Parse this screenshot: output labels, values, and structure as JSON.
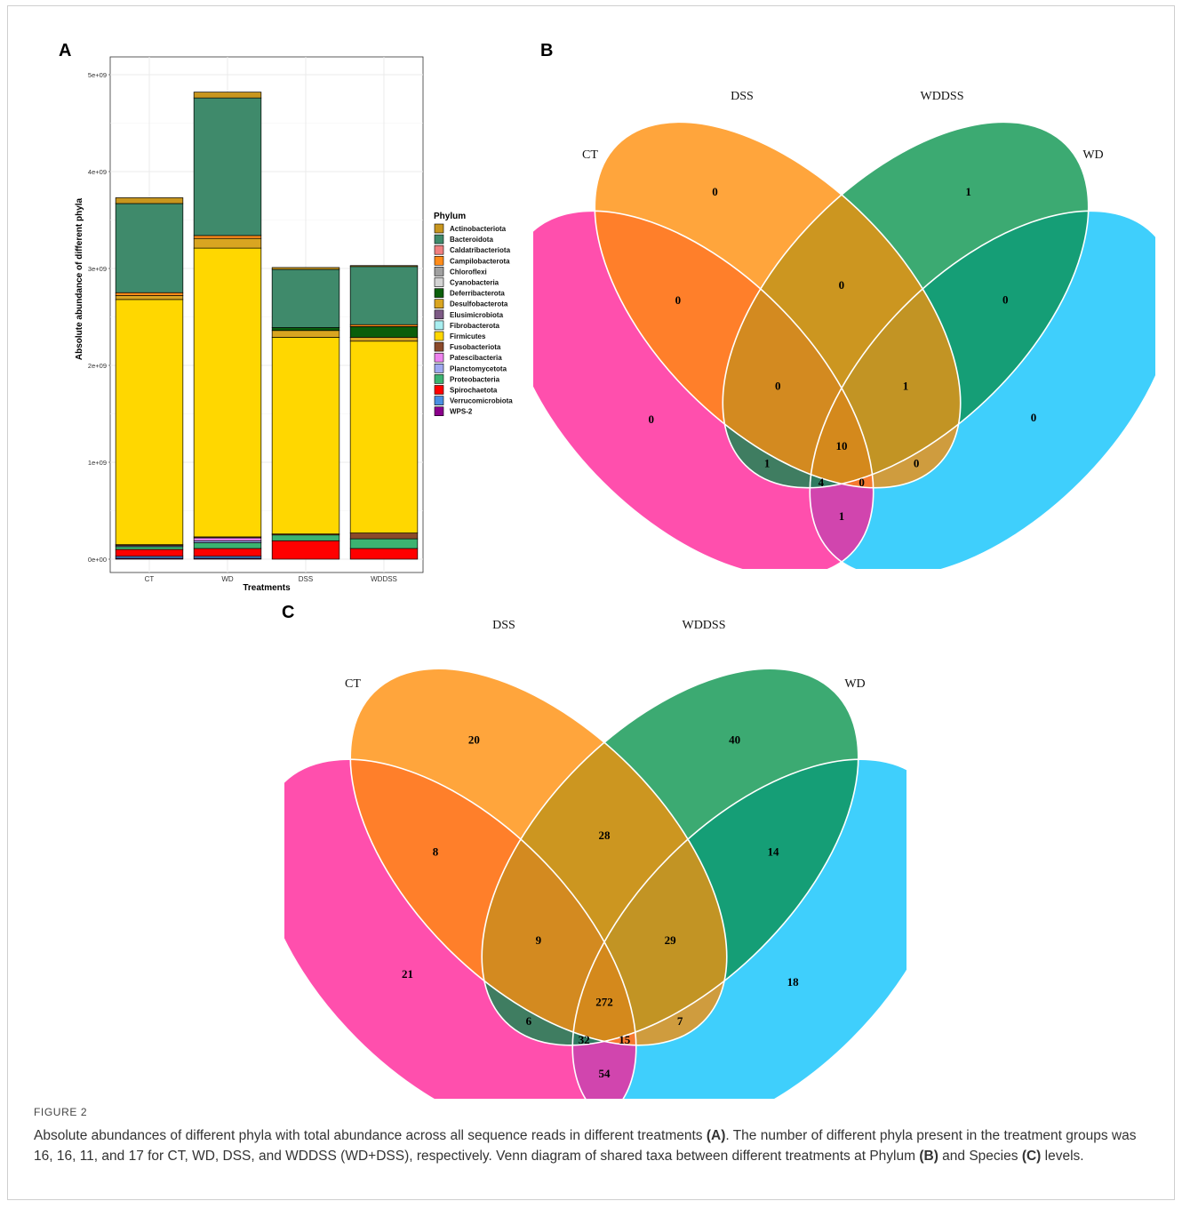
{
  "panels": {
    "a": "A",
    "b": "B",
    "c": "C"
  },
  "chart_data": [
    {
      "type": "bar",
      "stacked": true,
      "xlabel": "Treatments",
      "ylabel": "Absolute abundance of different phyla",
      "categories": [
        "CT",
        "WD",
        "DSS",
        "WDDSS"
      ],
      "ylim": [
        0,
        5000000000
      ],
      "yticks": [
        "0e+00",
        "1e+09",
        "2e+09",
        "3e+09",
        "4e+09",
        "5e+09"
      ],
      "grid": true,
      "legend_title": "Phylum",
      "legend_position": "right",
      "series": [
        {
          "name": "Actinobacteriota",
          "color": "#c8961e",
          "values": [
            60000000,
            60000000,
            20000000,
            10000000
          ]
        },
        {
          "name": "Bacteroidota",
          "color": "#3f8a6b",
          "values": [
            920000000,
            1420000000,
            600000000,
            600000000
          ]
        },
        {
          "name": "Caldatribacteriota",
          "color": "#f08080",
          "values": [
            0,
            0,
            0,
            0
          ]
        },
        {
          "name": "Campilobacterota",
          "color": "#ff8c1a",
          "values": [
            30000000,
            30000000,
            0,
            20000000
          ]
        },
        {
          "name": "Chloroflexi",
          "color": "#a0a0a0",
          "values": [
            0,
            0,
            0,
            0
          ]
        },
        {
          "name": "Cyanobacteria",
          "color": "#d3d3d3",
          "values": [
            0,
            0,
            0,
            0
          ]
        },
        {
          "name": "Deferribacterota",
          "color": "#0b5e0b",
          "values": [
            0,
            0,
            30000000,
            110000000
          ]
        },
        {
          "name": "Desulfobacterota",
          "color": "#d9a521",
          "values": [
            40000000,
            100000000,
            70000000,
            40000000
          ]
        },
        {
          "name": "Elusimicrobiota",
          "color": "#7d5a85",
          "values": [
            0,
            0,
            0,
            0
          ]
        },
        {
          "name": "Fibrobacterota",
          "color": "#a8eef0",
          "values": [
            0,
            0,
            0,
            0
          ]
        },
        {
          "name": "Firmicutes",
          "color": "#ffd700",
          "values": [
            2530000000,
            2980000000,
            2030000000,
            1980000000
          ]
        },
        {
          "name": "Fusobacteriota",
          "color": "#8b4a2b",
          "values": [
            10000000,
            10000000,
            10000000,
            60000000
          ]
        },
        {
          "name": "Patescibacteria",
          "color": "#ee82ee",
          "values": [
            0,
            30000000,
            0,
            0
          ]
        },
        {
          "name": "Planctomycetota",
          "color": "#9fa8f0",
          "values": [
            10000000,
            20000000,
            0,
            0
          ]
        },
        {
          "name": "Proteobacteria",
          "color": "#3cb371",
          "values": [
            30000000,
            60000000,
            60000000,
            100000000
          ]
        },
        {
          "name": "Spirochaetota",
          "color": "#ff0000",
          "values": [
            70000000,
            80000000,
            190000000,
            110000000
          ]
        },
        {
          "name": "Verrucomicrobiota",
          "color": "#4a90e2",
          "values": [
            20000000,
            20000000,
            0,
            0
          ]
        },
        {
          "name": "WPS-2",
          "color": "#8b008b",
          "values": [
            10000000,
            10000000,
            0,
            0
          ]
        }
      ]
    },
    {
      "type": "venn",
      "panel": "B",
      "sets": [
        "CT",
        "DSS",
        "WDDSS",
        "WD"
      ],
      "regions": {
        "CT": 0,
        "DSS": 0,
        "WDDSS": 1,
        "WD": 0,
        "CT&DSS": 0,
        "DSS&WDDSS": 0,
        "WDDSS&WD": 0,
        "CT&DSS&WDDSS": 0,
        "DSS&WDDSS&WD": 1,
        "CT&DSS&WDDSS&WD": 10,
        "CT&WDDSS": 1,
        "DSS&WD": 0,
        "CT&WDDSS&WD": 4,
        "CT&DSS&WD": 0,
        "CT&WD": 1
      }
    },
    {
      "type": "venn",
      "panel": "C",
      "sets": [
        "CT",
        "DSS",
        "WDDSS",
        "WD"
      ],
      "regions": {
        "CT": 21,
        "DSS": 20,
        "WDDSS": 40,
        "WD": 18,
        "CT&DSS": 8,
        "DSS&WDDSS": 28,
        "WDDSS&WD": 14,
        "CT&DSS&WDDSS": 9,
        "DSS&WDDSS&WD": 29,
        "CT&DSS&WDDSS&WD": 272,
        "CT&WDDSS": 6,
        "DSS&WD": 7,
        "CT&WDDSS&WD": 32,
        "CT&DSS&WD": 15,
        "CT&WD": 54
      }
    }
  ],
  "venn_colors": {
    "CT": "#ff4fad",
    "DSS": "#ffa53c",
    "WDDSS": "#3caa72",
    "WD": "#3fcffc",
    "CT&DSS": "#ff7f2a",
    "DSS&WDDSS": "#cc9620",
    "WDDSS&WD": "#159e76",
    "CT&DSS&WDDSS": "#d38a20",
    "DSS&WDDSS&WD": "#c29424",
    "CT&DSS&WDDSS&WD": "#d4891c",
    "CT&WDDSS": "#3f7d61",
    "DSS&WD": "#cf9c3e",
    "CT&WDDSS&WD": "#2f7a60",
    "CT&DSS&WD": "#f6792f",
    "CT&WD": "#d145ae"
  },
  "caption": {
    "label": "FIGURE 2",
    "p1": "Absolute abundances of different phyla with total abundance across all sequence reads in different treatments ",
    "ref_a": "(A)",
    "p2": ". The number of different phyla present in the treatment groups was 16, 16, 11, and 17 for CT, WD, DSS, and WDDSS (WD+DSS), respectively. Venn diagram of shared taxa between different treatments at Phylum ",
    "ref_b": "(B)",
    "p3": " and Species ",
    "ref_c": "(C)",
    "p4": " levels."
  }
}
